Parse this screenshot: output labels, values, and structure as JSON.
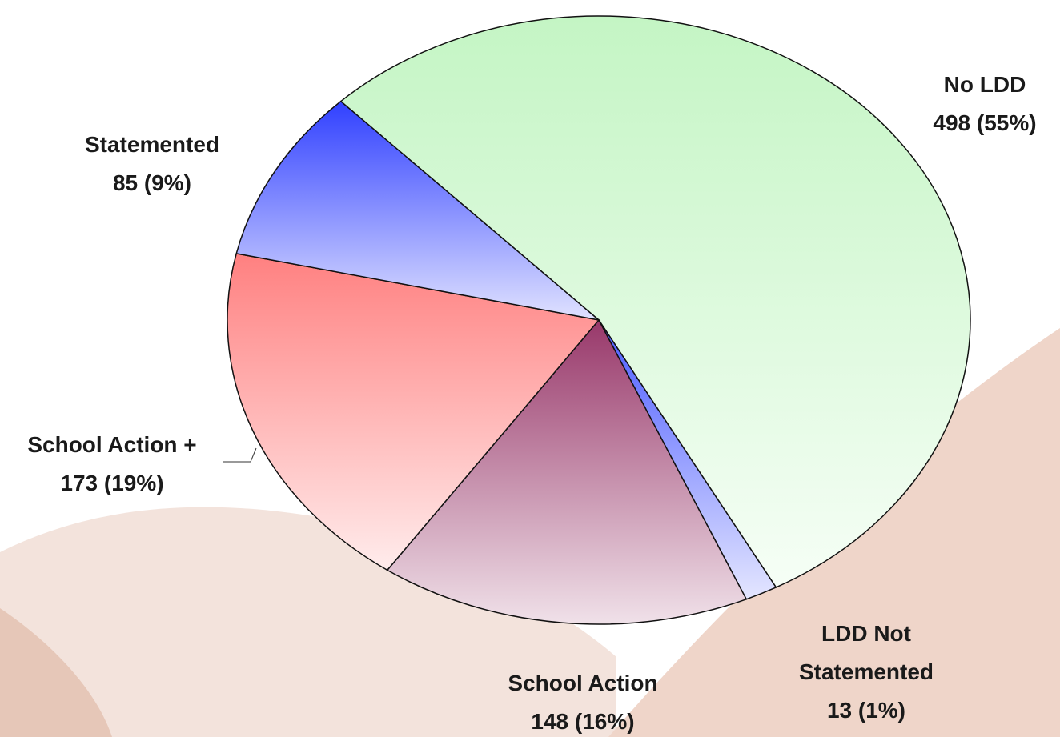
{
  "chart_data": {
    "type": "pie",
    "categories": [
      "No LDD",
      "LDD Not Statemented",
      "School Action",
      "School Action +",
      "Statemented"
    ],
    "values": [
      498,
      13,
      148,
      173,
      85
    ],
    "value_labels": [
      "498 (55%)",
      "13 (1%)",
      "148 (16%)",
      "173 (19%)",
      "85 (9%)"
    ],
    "colors": [
      "#c4f5c4",
      "#4a5aff",
      "#98386a",
      "#ff8080",
      "#3040ff"
    ]
  }
}
